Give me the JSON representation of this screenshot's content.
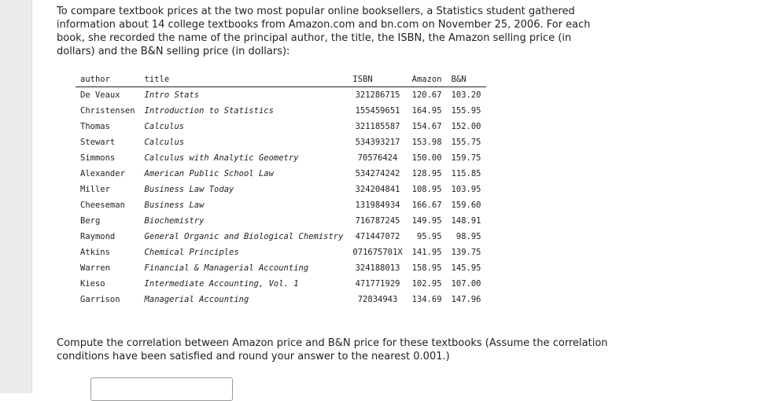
{
  "intro": "To compare textbook prices at the two most popular online booksellers, a Statistics student gathered information about 14 college textbooks from Amazon.com and bn.com on November 25, 2006. For each book, she recorded the name of the principal author, the title, the ISBN, the Amazon selling price (in dollars) and the B&N selling price (in dollars):",
  "table": {
    "headers": [
      "author",
      "title",
      "ISBN",
      "Amazon",
      "B&N"
    ],
    "rows": [
      [
        "De Veaux",
        "Intro Stats",
        "321286715",
        "120.67",
        "103.20"
      ],
      [
        "Christensen",
        "Introduction to Statistics",
        "155459651",
        "164.95",
        "155.95"
      ],
      [
        "Thomas",
        "Calculus",
        "321185587",
        "154.67",
        "152.00"
      ],
      [
        "Stewart",
        "Calculus",
        "534393217",
        "153.98",
        "155.75"
      ],
      [
        "Simmons",
        "Calculus with Analytic Geometry",
        "70576424",
        "150.00",
        "159.75"
      ],
      [
        "Alexander",
        "American Public School Law",
        "534274242",
        "128.95",
        "115.85"
      ],
      [
        "Miller",
        "Business Law Today",
        "324204841",
        "108.95",
        "103.95"
      ],
      [
        "Cheeseman",
        "Business Law",
        "131984934",
        "166.67",
        "159.60"
      ],
      [
        "Berg",
        "Biochemistry",
        "716787245",
        "149.95",
        "148.91"
      ],
      [
        "Raymond",
        "General Organic and Biological Chemistry",
        "471447072",
        "95.95",
        "98.95"
      ],
      [
        "Atkins",
        "Chemical Principles",
        "071675701X",
        "141.95",
        "139.75"
      ],
      [
        "Warren",
        "Financial & Managerial Accounting",
        "324188013",
        "158.95",
        "145.95"
      ],
      [
        "Kieso",
        "Intermediate Accounting, Vol. 1",
        "471771929",
        "102.95",
        "107.00"
      ],
      [
        "Garrison",
        "Managerial Accounting",
        "72834943",
        "134.69",
        "147.96"
      ]
    ]
  },
  "question": "Compute the correlation between Amazon price and B&N price for these textbooks (Assume the correlation conditions have been satisfied and round your answer to the nearest 0.001.)",
  "answer": {
    "value": ""
  }
}
